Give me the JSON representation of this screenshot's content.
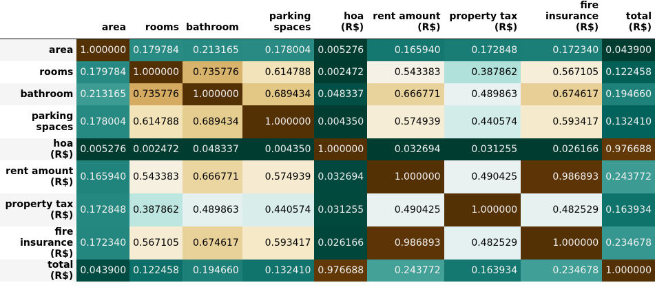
{
  "chart_data": {
    "type": "heatmap",
    "title": "",
    "columns": [
      "area",
      "rooms",
      "bathroom",
      "parking spaces",
      "hoa (R$)",
      "rent amount (R$)",
      "property tax (R$)",
      "fire insurance (R$)",
      "total (R$)"
    ],
    "rows": [
      "area",
      "rooms",
      "bathroom",
      "parking spaces",
      "hoa (R$)",
      "rent amount (R$)",
      "property tax (R$)",
      "fire insurance (R$)",
      "total (R$)"
    ],
    "values": [
      [
        "1.000000",
        "0.179784",
        "0.213165",
        "0.178004",
        "0.005276",
        "0.165940",
        "0.172848",
        "0.172340",
        "0.043900"
      ],
      [
        "0.179784",
        "1.000000",
        "0.735776",
        "0.614788",
        "0.002472",
        "0.543383",
        "0.387862",
        "0.567105",
        "0.122458"
      ],
      [
        "0.213165",
        "0.735776",
        "1.000000",
        "0.689434",
        "0.048337",
        "0.666771",
        "0.489863",
        "0.674617",
        "0.194660"
      ],
      [
        "0.178004",
        "0.614788",
        "0.689434",
        "1.000000",
        "0.004350",
        "0.574939",
        "0.440574",
        "0.593417",
        "0.132410"
      ],
      [
        "0.005276",
        "0.002472",
        "0.048337",
        "0.004350",
        "1.000000",
        "0.032694",
        "0.031255",
        "0.026166",
        "0.976688"
      ],
      [
        "0.165940",
        "0.543383",
        "0.666771",
        "0.574939",
        "0.032694",
        "1.000000",
        "0.490425",
        "0.986893",
        "0.243772"
      ],
      [
        "0.172848",
        "0.387862",
        "0.489863",
        "0.440574",
        "0.031255",
        "0.490425",
        "1.000000",
        "0.482529",
        "0.163934"
      ],
      [
        "0.172340",
        "0.567105",
        "0.674617",
        "0.593417",
        "0.026166",
        "0.986893",
        "0.482529",
        "1.000000",
        "0.234678"
      ],
      [
        "0.043900",
        "0.122458",
        "0.194660",
        "0.132410",
        "0.976688",
        "0.243772",
        "0.163934",
        "0.234678",
        "1.000000"
      ]
    ],
    "colormap": "BrBG_r",
    "color_scheme": "per-column"
  }
}
